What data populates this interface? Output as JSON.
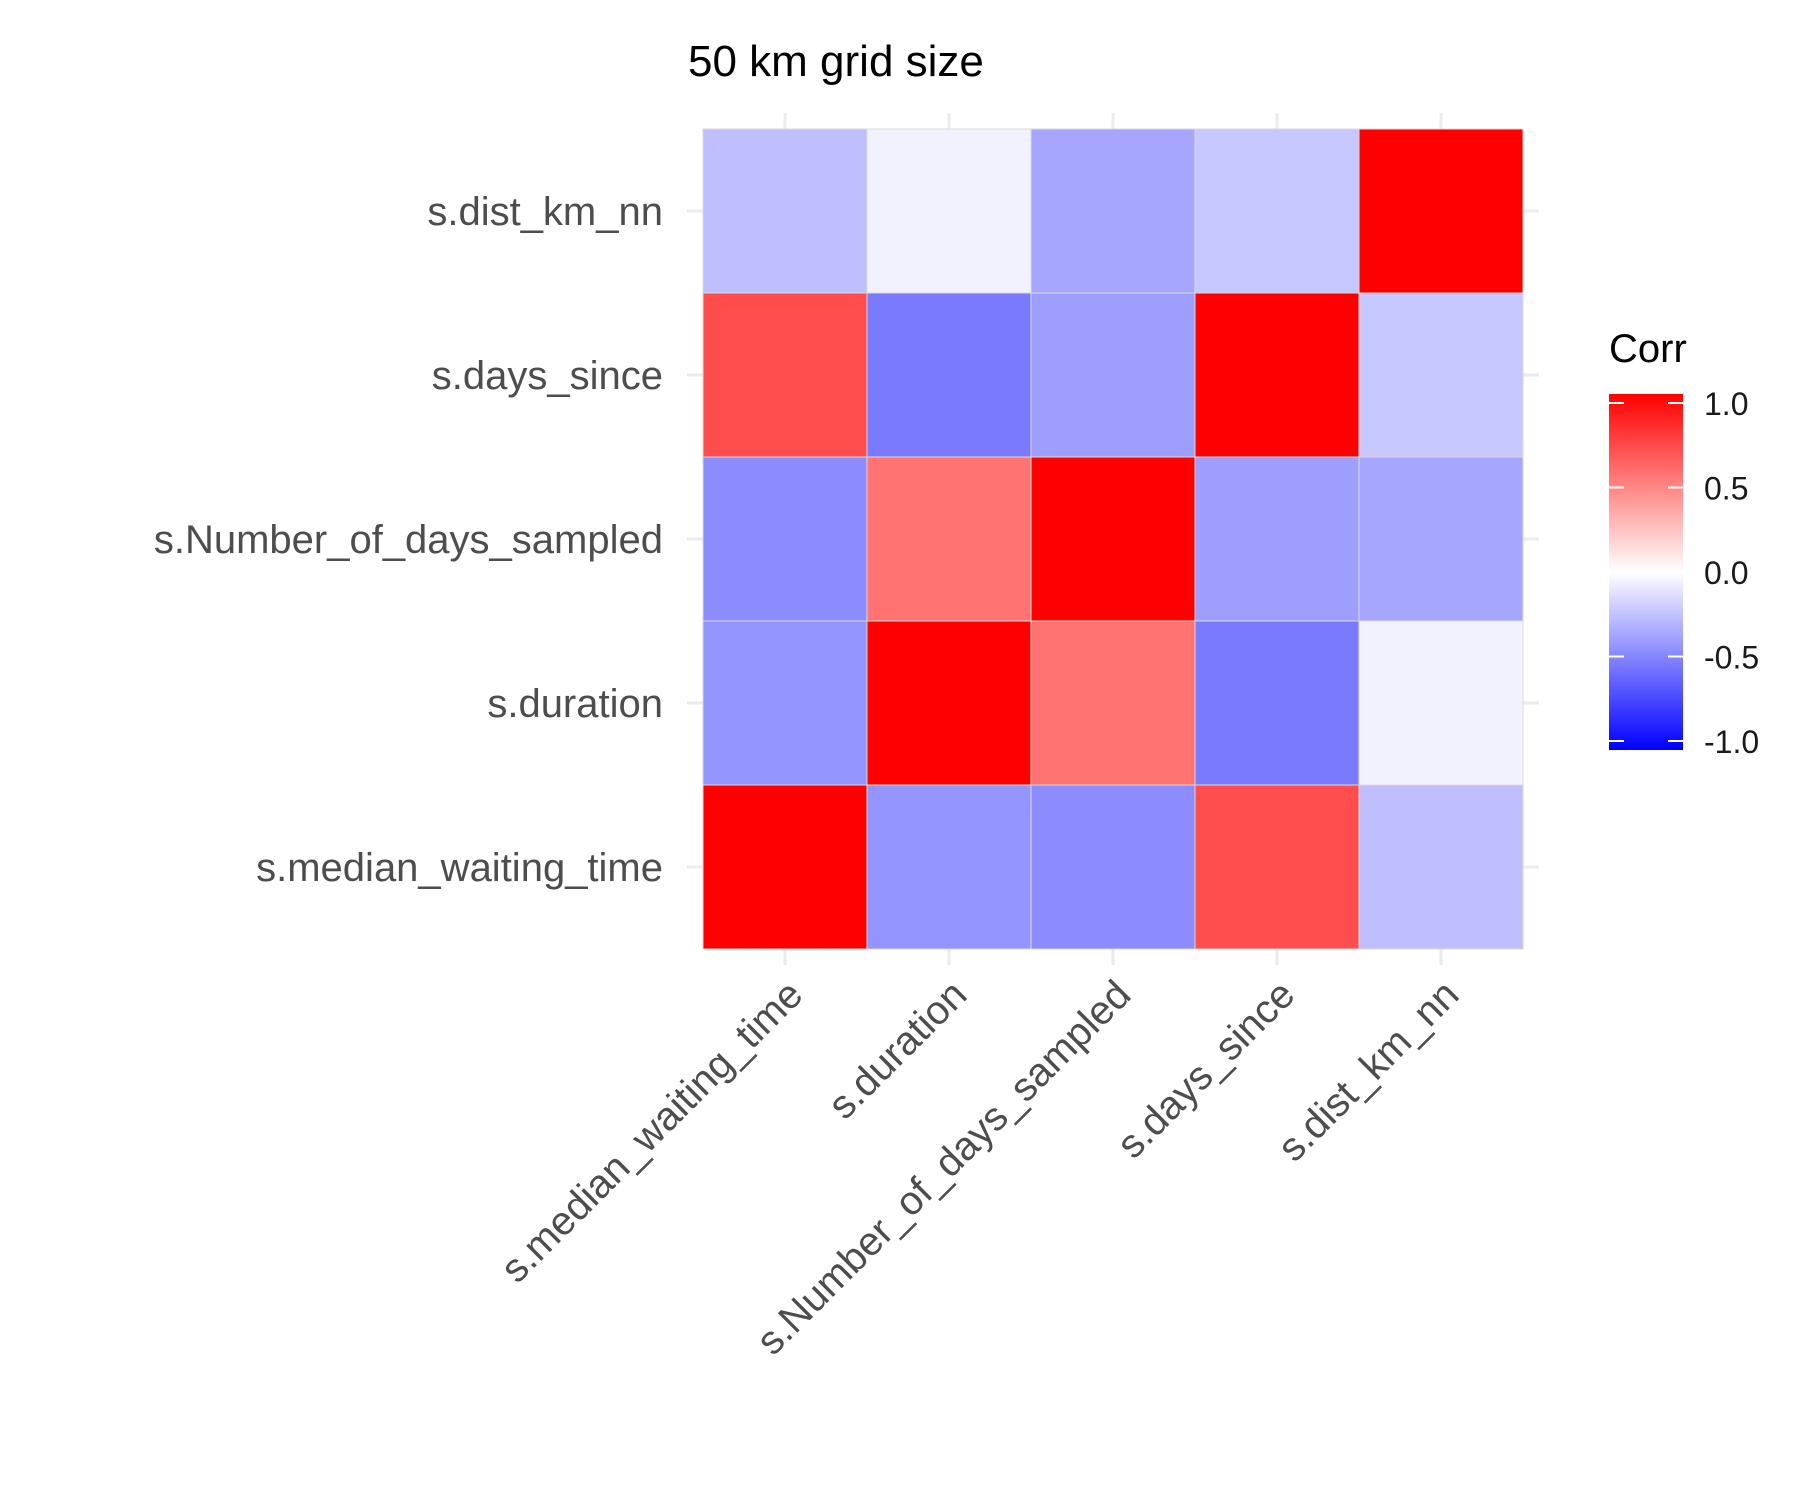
{
  "chart_data": {
    "type": "heatmap",
    "title": "50 km grid size",
    "xlabel": "",
    "ylabel": "",
    "x_categories": [
      "s.median_waiting_time",
      "s.duration",
      "s.Number_of_days_sampled",
      "s.days_since",
      "s.dist_km_nn"
    ],
    "y_categories": [
      "s.median_waiting_time",
      "s.duration",
      "s.Number_of_days_sampled",
      "s.days_since",
      "s.dist_km_nn"
    ],
    "values": [
      [
        1.0,
        -0.42,
        -0.45,
        0.7,
        -0.25
      ],
      [
        -0.42,
        1.0,
        0.55,
        -0.52,
        -0.05
      ],
      [
        -0.45,
        0.55,
        1.0,
        -0.38,
        -0.35
      ],
      [
        0.7,
        -0.52,
        -0.38,
        1.0,
        -0.22
      ],
      [
        -0.25,
        -0.05,
        -0.35,
        -0.22,
        1.0
      ]
    ],
    "legend": {
      "title": "Corr",
      "ticks": [
        "1.0",
        "0.5",
        "0.0",
        "-0.5",
        "-1.0"
      ],
      "tick_values": [
        1.0,
        0.5,
        0.0,
        -0.5,
        -1.0
      ],
      "range": [
        -1.0,
        1.0
      ],
      "low_color": "#0000ff",
      "mid_color": "#ffffff",
      "high_color": "#ff0000",
      "placement": "right"
    },
    "grid": true
  }
}
